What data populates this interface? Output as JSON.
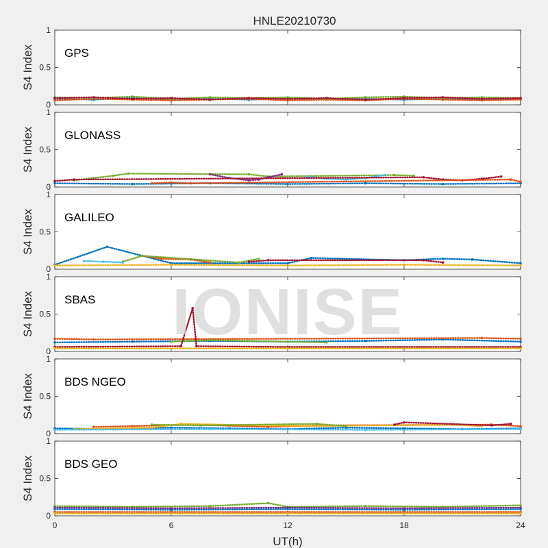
{
  "chart_data": {
    "type": "scatter",
    "title": "HNLE20210730",
    "xlabel": "UT(h)",
    "ylabel": "S4 Index",
    "xlim": [
      0,
      24
    ],
    "ylim": [
      0,
      1
    ],
    "xticks": [
      "0",
      "6",
      "12",
      "18",
      "24"
    ],
    "yticks": [
      "0",
      "0.5",
      "1"
    ],
    "watermark": "IONISE",
    "colors": [
      "#0072BD",
      "#D95319",
      "#EDB120",
      "#7E2F8E",
      "#77AC30",
      "#4DBEEE",
      "#A2142F"
    ],
    "panels": [
      {
        "name": "GPS",
        "series": [
          {
            "color": "#0072BD",
            "x": [
              0,
              2,
              4,
              6,
              8,
              10,
              12,
              14,
              16,
              18,
              20,
              22,
              24
            ],
            "y": [
              0.08,
              0.07,
              0.09,
              0.07,
              0.08,
              0.07,
              0.08,
              0.07,
              0.08,
              0.07,
              0.08,
              0.07,
              0.08
            ]
          },
          {
            "color": "#D95319",
            "x": [
              0,
              2,
              4,
              6,
              8,
              10,
              12,
              14,
              16,
              18,
              20,
              22,
              24
            ],
            "y": [
              0.06,
              0.08,
              0.07,
              0.06,
              0.07,
              0.08,
              0.06,
              0.07,
              0.06,
              0.08,
              0.07,
              0.06,
              0.07
            ]
          },
          {
            "color": "#77AC30",
            "x": [
              0,
              2,
              4,
              6,
              8,
              10,
              12,
              14,
              16,
              18,
              20,
              22,
              24
            ],
            "y": [
              0.1,
              0.09,
              0.11,
              0.08,
              0.1,
              0.09,
              0.1,
              0.08,
              0.1,
              0.11,
              0.09,
              0.1,
              0.09
            ]
          },
          {
            "color": "#A2142F",
            "x": [
              0,
              2,
              4,
              6,
              8,
              10,
              12,
              14,
              16,
              18,
              20,
              22,
              24
            ],
            "y": [
              0.09,
              0.1,
              0.08,
              0.09,
              0.07,
              0.09,
              0.08,
              0.09,
              0.07,
              0.09,
              0.1,
              0.08,
              0.09
            ]
          }
        ]
      },
      {
        "name": "GLONASS",
        "series": [
          {
            "color": "#0072BD",
            "x": [
              0,
              4,
              8,
              12,
              16,
              20,
              24
            ],
            "y": [
              0.05,
              0.04,
              0.05,
              0.04,
              0.05,
              0.04,
              0.05
            ]
          },
          {
            "color": "#77AC30",
            "x": [
              1,
              2,
              3,
              3.8,
              10,
              11,
              17.5,
              18.5
            ],
            "y": [
              0.09,
              0.12,
              0.15,
              0.18,
              0.17,
              0.14,
              0.16,
              0.15
            ]
          },
          {
            "color": "#7E2F8E",
            "x": [
              8,
              9,
              10,
              10.5,
              11,
              11.7
            ],
            "y": [
              0.17,
              0.12,
              0.09,
              0.1,
              0.13,
              0.17
            ]
          },
          {
            "color": "#4DBEEE",
            "x": [
              13,
              14,
              15,
              16,
              17
            ],
            "y": [
              0.14,
              0.11,
              0.1,
              0.12,
              0.16
            ]
          },
          {
            "color": "#A2142F",
            "x": [
              0,
              1,
              19,
              20,
              21,
              22,
              23
            ],
            "y": [
              0.08,
              0.1,
              0.13,
              0.1,
              0.09,
              0.11,
              0.14
            ]
          },
          {
            "color": "#D95319",
            "x": [
              5,
              6,
              7,
              23.5,
              24
            ],
            "y": [
              0.05,
              0.06,
              0.05,
              0.1,
              0.07
            ]
          }
        ]
      },
      {
        "name": "GALILEO",
        "series": [
          {
            "color": "#0072BD",
            "x": [
              0,
              2.7,
              6,
              12,
              13.2,
              18,
              20,
              21.5,
              24
            ],
            "y": [
              0.06,
              0.3,
              0.08,
              0.08,
              0.15,
              0.12,
              0.14,
              0.13,
              0.08
            ]
          },
          {
            "color": "#D95319",
            "x": [
              4.5,
              5.5,
              7,
              8
            ],
            "y": [
              0.18,
              0.14,
              0.13,
              0.09
            ]
          },
          {
            "color": "#77AC30",
            "x": [
              3.5,
              4.5,
              9.5,
              10.5
            ],
            "y": [
              0.1,
              0.18,
              0.09,
              0.14
            ]
          },
          {
            "color": "#4DBEEE",
            "x": [
              1.5,
              2.5,
              3.5
            ],
            "y": [
              0.11,
              0.1,
              0.09
            ]
          },
          {
            "color": "#A2142F",
            "x": [
              10,
              11,
              19,
              20
            ],
            "y": [
              0.1,
              0.12,
              0.12,
              0.09
            ]
          },
          {
            "color": "#EDB120",
            "x": [
              0,
              6,
              12,
              18,
              24
            ],
            "y": [
              0.05,
              0.06,
              0.05,
              0.06,
              0.05
            ]
          }
        ]
      },
      {
        "name": "SBAS",
        "series": [
          {
            "color": "#0072BD",
            "x": [
              0,
              4,
              8,
              12,
              16,
              20,
              24
            ],
            "y": [
              0.12,
              0.13,
              0.14,
              0.13,
              0.14,
              0.16,
              0.13
            ]
          },
          {
            "color": "#D95319",
            "x": [
              0,
              2,
              22,
              24
            ],
            "y": [
              0.17,
              0.16,
              0.18,
              0.17
            ]
          },
          {
            "color": "#77AC30",
            "x": [
              6,
              8,
              10,
              12,
              14
            ],
            "y": [
              0.13,
              0.15,
              0.14,
              0.13,
              0.12
            ]
          },
          {
            "color": "#A2142F",
            "x": [
              0,
              6.5,
              7.1,
              7.3,
              12,
              24
            ],
            "y": [
              0.06,
              0.07,
              0.58,
              0.07,
              0.06,
              0.06
            ]
          },
          {
            "color": "#EDB120",
            "x": [
              0,
              12,
              24
            ],
            "y": [
              0.04,
              0.04,
              0.04
            ]
          }
        ]
      },
      {
        "name": "BDS NGEO",
        "series": [
          {
            "color": "#0072BD",
            "x": [
              0,
              3,
              6,
              9,
              12,
              15,
              18,
              21,
              24
            ],
            "y": [
              0.07,
              0.06,
              0.08,
              0.07,
              0.06,
              0.08,
              0.07,
              0.06,
              0.07
            ]
          },
          {
            "color": "#D95319",
            "x": [
              2,
              4,
              7,
              11,
              14,
              22.5,
              24
            ],
            "y": [
              0.09,
              0.1,
              0.12,
              0.09,
              0.11,
              0.12,
              0.1
            ]
          },
          {
            "color": "#EDB120",
            "x": [
              1,
              5,
              6.5,
              13,
              20.5,
              22
            ],
            "y": [
              0.06,
              0.08,
              0.13,
              0.1,
              0.12,
              0.1
            ]
          },
          {
            "color": "#77AC30",
            "x": [
              5,
              7.5,
              13.5,
              15
            ],
            "y": [
              0.12,
              0.11,
              0.13,
              0.1
            ]
          },
          {
            "color": "#A2142F",
            "x": [
              17.5,
              18,
              22.5,
              23.5
            ],
            "y": [
              0.12,
              0.15,
              0.11,
              0.13
            ]
          },
          {
            "color": "#4DBEEE",
            "x": [
              0,
              8,
              16,
              24
            ],
            "y": [
              0.05,
              0.06,
              0.05,
              0.06
            ]
          }
        ]
      },
      {
        "name": "BDS GEO",
        "series": [
          {
            "color": "#77AC30",
            "x": [
              0,
              4,
              8,
              11,
              12,
              16,
              20,
              24
            ],
            "y": [
              0.13,
              0.12,
              0.13,
              0.17,
              0.12,
              0.13,
              0.12,
              0.14
            ]
          },
          {
            "color": "#0072BD",
            "x": [
              0,
              6,
              12,
              18,
              24
            ],
            "y": [
              0.09,
              0.08,
              0.09,
              0.08,
              0.09
            ]
          },
          {
            "color": "#D95319",
            "x": [
              0,
              6,
              12,
              18,
              24
            ],
            "y": [
              0.05,
              0.05,
              0.05,
              0.05,
              0.05
            ]
          },
          {
            "color": "#EDB120",
            "x": [
              0,
              6,
              12,
              18,
              24
            ],
            "y": [
              0.03,
              0.03,
              0.03,
              0.03,
              0.03
            ]
          },
          {
            "color": "#7E2F8E",
            "x": [
              0,
              6,
              12,
              18,
              24
            ],
            "y": [
              0.11,
              0.1,
              0.11,
              0.1,
              0.11
            ]
          }
        ]
      }
    ]
  }
}
